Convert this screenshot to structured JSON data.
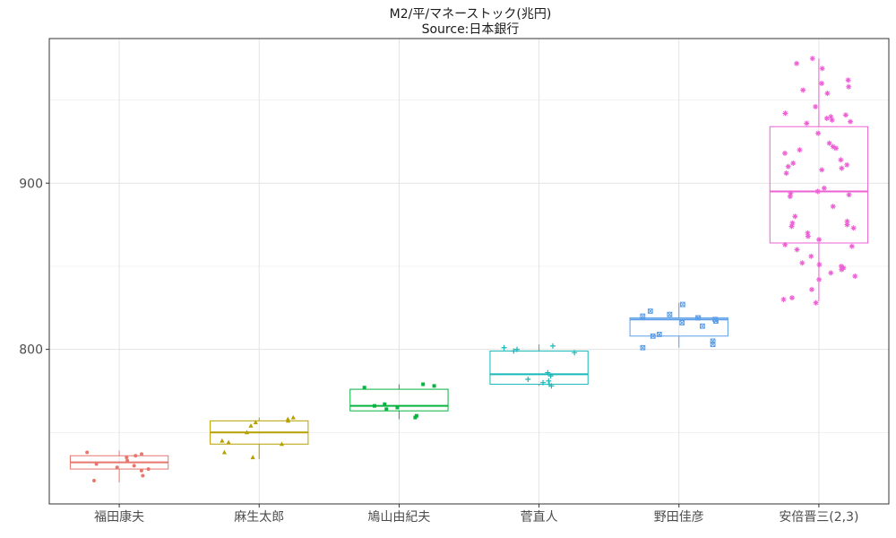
{
  "chart_data": {
    "type": "box",
    "title": "M2/平/マネーストック(兆円)",
    "subtitle": "Source:日本銀行",
    "xlabel": "",
    "ylabel": "",
    "ylim": [
      707,
      987
    ],
    "y_ticks": [
      800,
      900
    ],
    "grid": true,
    "legend": "none",
    "categories": [
      "福田康夫",
      "麻生太郎",
      "鳩山由紀夫",
      "菅直人",
      "野田佳彦",
      "安倍晋三(2,3)"
    ],
    "series": [
      {
        "category": "福田康夫",
        "color": "#e7766f",
        "marker": "circle",
        "box": {
          "min": 720,
          "q1": 728,
          "median": 732,
          "q3": 736,
          "max": 739
        },
        "points": [
          738,
          737,
          736,
          735,
          733,
          731,
          730,
          729,
          728,
          727,
          724,
          721
        ]
      },
      {
        "category": "麻生太郎",
        "color": "#b5a000",
        "marker": "triangle",
        "box": {
          "min": 734,
          "q1": 743,
          "median": 750,
          "q3": 757,
          "max": 759
        },
        "points": [
          759,
          758,
          757,
          756,
          754,
          750,
          745,
          744,
          743,
          738,
          735
        ]
      },
      {
        "category": "鳩山由紀夫",
        "color": "#08b340",
        "marker": "square",
        "box": {
          "min": 758,
          "q1": 763,
          "median": 766,
          "q3": 776,
          "max": 779
        },
        "points": [
          779,
          778,
          777,
          767,
          766,
          765,
          764,
          760,
          759
        ]
      },
      {
        "category": "菅直人",
        "color": "#19b8b8",
        "marker": "plus",
        "box": {
          "min": 778,
          "q1": 779,
          "median": 785,
          "q3": 799,
          "max": 803
        },
        "points": [
          802,
          801,
          800,
          799,
          798,
          786,
          784,
          782,
          781,
          780,
          779,
          778
        ]
      },
      {
        "category": "野田佳彦",
        "color": "#5c9ee8",
        "marker": "square-x",
        "box": {
          "min": 801,
          "q1": 808,
          "median": 818,
          "q3": 819,
          "max": 828
        },
        "points": [
          827,
          823,
          821,
          820,
          819,
          819,
          818,
          817,
          816,
          814,
          809,
          808,
          805,
          803,
          801
        ]
      },
      {
        "category": "安倍晋三(2,3)",
        "color": "#ed61d5",
        "marker": "asterisk",
        "box": {
          "min": 829,
          "q1": 864,
          "median": 895,
          "q3": 934,
          "max": 975
        },
        "points": [
          975,
          972,
          969,
          962,
          960,
          958,
          956,
          954,
          946,
          942,
          941,
          940,
          939,
          938,
          937,
          936,
          930,
          924,
          922,
          921,
          920,
          918,
          914,
          912,
          911,
          910,
          909,
          908,
          906,
          897,
          895,
          894,
          893,
          892,
          886,
          880,
          877,
          876,
          875,
          874,
          873,
          870,
          868,
          866,
          863,
          862,
          860,
          856,
          852,
          851,
          850,
          849,
          848,
          846,
          844,
          842,
          836,
          831,
          830,
          828
        ]
      }
    ]
  }
}
